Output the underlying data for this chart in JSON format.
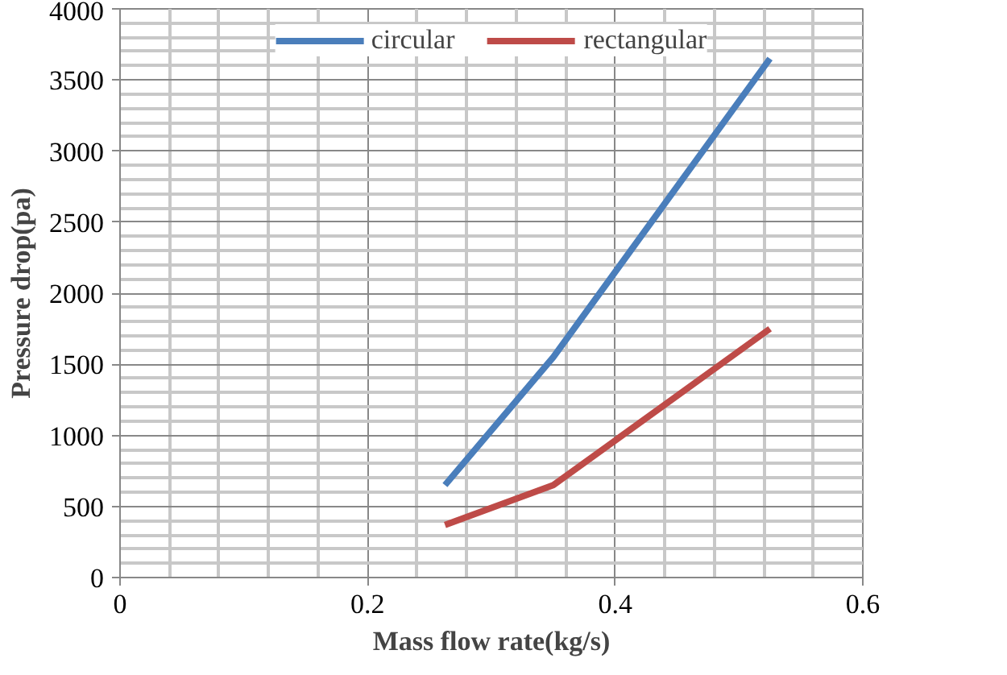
{
  "chart_data": {
    "type": "line",
    "xlabel": "Mass flow rate(kg/s)",
    "ylabel": "Pressure drop(pa)",
    "x": [
      0.2625,
      0.35,
      0.4375,
      0.525
    ],
    "series": [
      {
        "name": "circular",
        "color": "#4a7ebb",
        "values": [
          650,
          1550,
          2600,
          3650
        ]
      },
      {
        "name": "rectangular",
        "color": "#be4b48",
        "values": [
          370,
          650,
          1200,
          1750
        ]
      }
    ],
    "xlim": [
      0,
      0.6
    ],
    "xticks": [
      0,
      0.2,
      0.4,
      0.6
    ],
    "ylim": [
      0,
      4000
    ],
    "yticks": [
      0,
      500,
      1000,
      1500,
      2000,
      2500,
      3000,
      3500,
      4000
    ],
    "grid": true,
    "legend": "top",
    "marker": "none",
    "line_style": "solid"
  }
}
